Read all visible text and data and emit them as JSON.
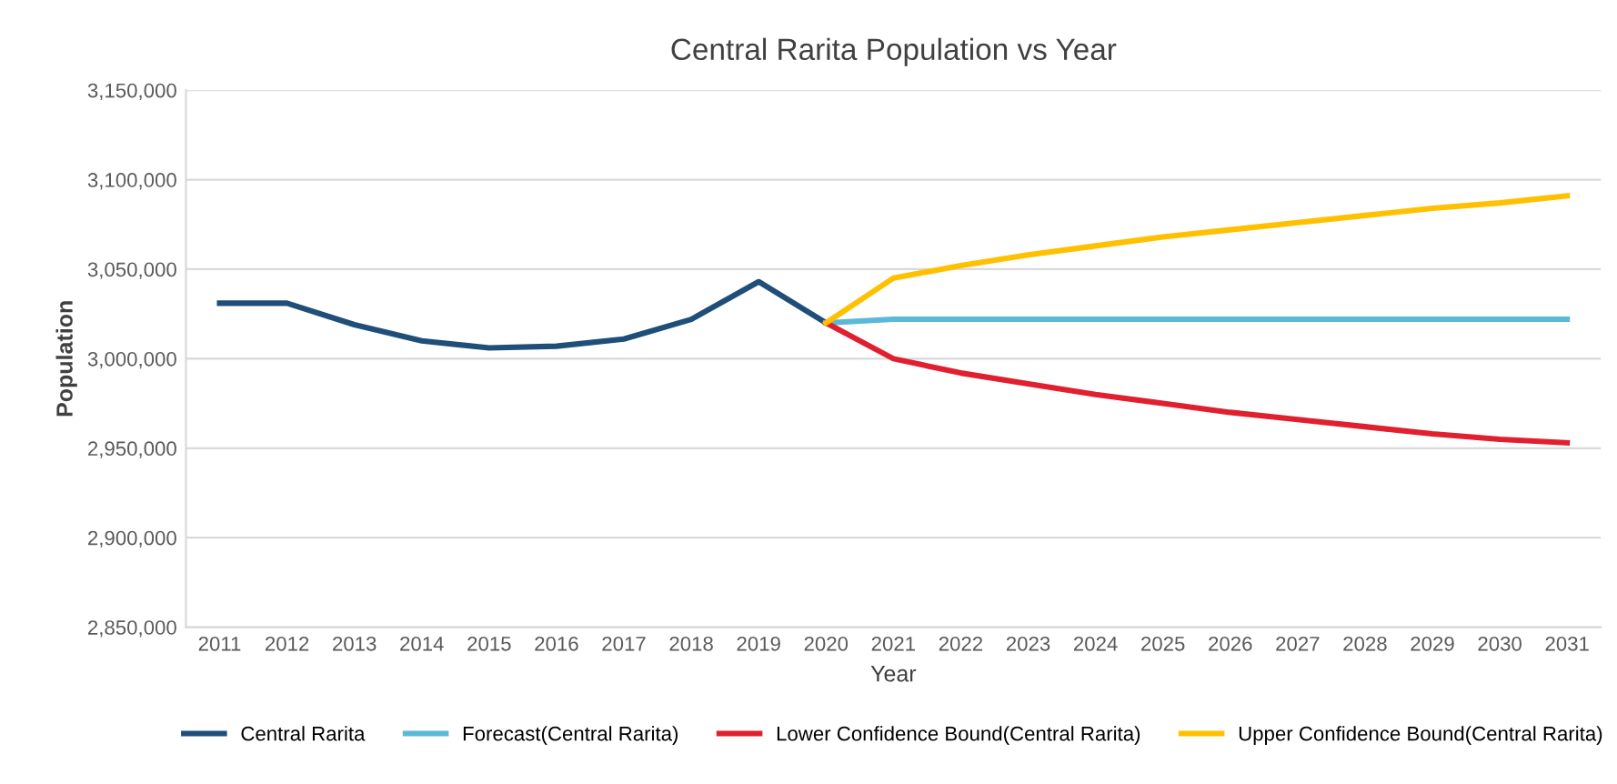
{
  "chart_data": {
    "type": "line",
    "title": "Central Rarita Population vs Year",
    "xlabel": "Year",
    "ylabel": "Population",
    "categories": [
      "2011",
      "2012",
      "2013",
      "2014",
      "2015",
      "2016",
      "2017",
      "2018",
      "2019",
      "2020",
      "2021",
      "2022",
      "2023",
      "2024",
      "2025",
      "2026",
      "2027",
      "2028",
      "2029",
      "2030",
      "2031"
    ],
    "series": [
      {
        "name": "Central Rarita",
        "color": "#1f4e79",
        "values": [
          3031000,
          3031000,
          3019000,
          3010000,
          3006000,
          3007000,
          3011000,
          3022000,
          3043000,
          3020000,
          null,
          null,
          null,
          null,
          null,
          null,
          null,
          null,
          null,
          null,
          null
        ]
      },
      {
        "name": "Forecast(Central Rarita)",
        "color": "#5bb8d6",
        "values": [
          null,
          null,
          null,
          null,
          null,
          null,
          null,
          null,
          null,
          3020000,
          3022000,
          3022000,
          3022000,
          3022000,
          3022000,
          3022000,
          3022000,
          3022000,
          3022000,
          3022000,
          3022000
        ]
      },
      {
        "name": "Lower Confidence Bound(Central Rarita)",
        "color": "#e0202f",
        "values": [
          null,
          null,
          null,
          null,
          null,
          null,
          null,
          null,
          null,
          3020000,
          3000000,
          2992000,
          2986000,
          2980000,
          2975000,
          2970000,
          2966000,
          2962000,
          2958000,
          2955000,
          2953000
        ]
      },
      {
        "name": "Upper Confidence Bound(Central Rarita)",
        "color": "#ffc000",
        "values": [
          null,
          null,
          null,
          null,
          null,
          null,
          null,
          null,
          null,
          3020000,
          3045000,
          3052000,
          3058000,
          3063000,
          3068000,
          3072000,
          3076000,
          3080000,
          3084000,
          3087000,
          3091000
        ]
      }
    ],
    "ylim": [
      2850000,
      3150000
    ],
    "yticks": [
      {
        "value": 2850000,
        "label": "2,850,000"
      },
      {
        "value": 2900000,
        "label": "2,900,000"
      },
      {
        "value": 2950000,
        "label": "2,950,000"
      },
      {
        "value": 3000000,
        "label": "3,000,000"
      },
      {
        "value": 3050000,
        "label": "3,050,000"
      },
      {
        "value": 3100000,
        "label": "3,100,000"
      },
      {
        "value": 3150000,
        "label": "3,150,000"
      }
    ],
    "grid": "y",
    "legend": "bottom",
    "marker": "none",
    "line_style": "solid"
  }
}
